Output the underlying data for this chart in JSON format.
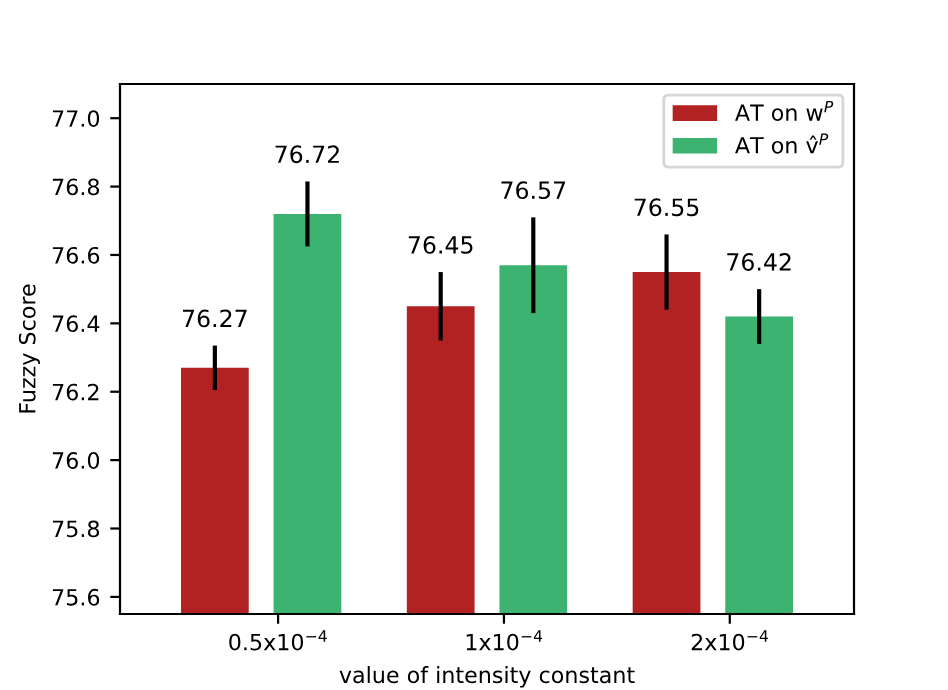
{
  "chart_data": {
    "type": "bar",
    "xlabel": "value of intensity constant",
    "ylabel": "Fuzzy Score",
    "categories": [
      "0.5x10$^{−4}$",
      "1x10$^{−4}$",
      "2x10$^{−4}$"
    ],
    "series": [
      {
        "name": "AT on w$^{P}$",
        "color": "#b22222",
        "values": [
          76.27,
          76.45,
          76.55
        ],
        "errors": [
          0.065,
          0.1,
          0.11
        ]
      },
      {
        "name": "AT on v̂$^{P}$",
        "color": "#3cb371",
        "values": [
          76.72,
          76.57,
          76.42
        ],
        "errors": [
          0.095,
          0.14,
          0.08
        ]
      }
    ],
    "ylim": [
      75.55,
      77.1
    ],
    "yticks": [
      75.6,
      75.8,
      {
        "value": 76,
        "label": "76.0"
      },
      76.2,
      76.4,
      76.6,
      76.8,
      {
        "value": 77,
        "label": "77.0"
      }
    ],
    "data_labels": true,
    "legend": "top right",
    "grid": false
  }
}
